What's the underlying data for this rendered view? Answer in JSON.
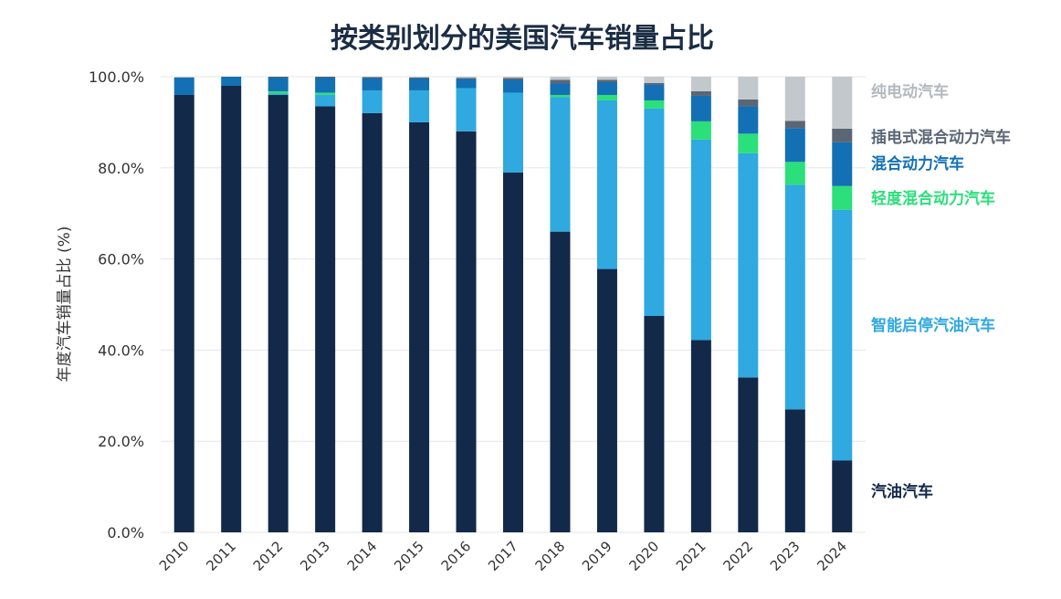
{
  "chart_data": {
    "type": "bar",
    "stacked": true,
    "title": "按类别划分的美国汽车销量占比",
    "ylabel": "年度汽车销量占比 (%)",
    "xlabel": "",
    "ylim": [
      0,
      100
    ],
    "yticks": [
      "0.0%",
      "20.0%",
      "40.0%",
      "60.0%",
      "80.0%",
      "100.0%"
    ],
    "grid": "horizontal",
    "legend_position": "right",
    "categories": [
      "2010",
      "2011",
      "2012",
      "2013",
      "2014",
      "2015",
      "2016",
      "2017",
      "2018",
      "2019",
      "2020",
      "2021",
      "2022",
      "2023",
      "2024"
    ],
    "series": [
      {
        "name": "汽油汽车",
        "color": "#12294a",
        "values": [
          96.0,
          98.0,
          96.0,
          93.5,
          92.0,
          90.0,
          88.0,
          79.0,
          66.0,
          57.8,
          47.5,
          42.2,
          34.0,
          27.0,
          15.8
        ]
      },
      {
        "name": "智能启停汽油汽车",
        "color": "#2fa9df",
        "values": [
          0.0,
          0.0,
          0.3,
          2.5,
          5.0,
          7.0,
          9.5,
          17.5,
          29.5,
          37.0,
          45.5,
          44.0,
          49.2,
          49.3,
          55.0
        ]
      },
      {
        "name": "轻度混合动力汽车",
        "color": "#2bdf7a",
        "values": [
          0.0,
          0.0,
          0.5,
          0.5,
          0.0,
          0.0,
          0.0,
          0.0,
          0.5,
          1.2,
          1.8,
          4.0,
          4.3,
          5.0,
          5.2
        ]
      },
      {
        "name": "混合动力汽车",
        "color": "#1370b4",
        "values": [
          3.8,
          2.0,
          3.0,
          3.3,
          2.7,
          2.6,
          2.0,
          2.8,
          2.5,
          2.8,
          3.4,
          5.6,
          6.0,
          7.4,
          9.6
        ]
      },
      {
        "name": "插电式混合动力汽车",
        "color": "#5b6675",
        "values": [
          0.0,
          0.0,
          0.2,
          0.2,
          0.2,
          0.2,
          0.2,
          0.4,
          0.8,
          0.5,
          0.4,
          1.0,
          1.5,
          1.6,
          3.0
        ]
      },
      {
        "name": "纯电动汽车",
        "color": "#c2c8cc",
        "values": [
          0.2,
          0.0,
          0.0,
          0.0,
          0.1,
          0.2,
          0.3,
          0.3,
          0.7,
          0.7,
          1.4,
          3.2,
          5.0,
          9.7,
          11.4
        ]
      }
    ]
  }
}
